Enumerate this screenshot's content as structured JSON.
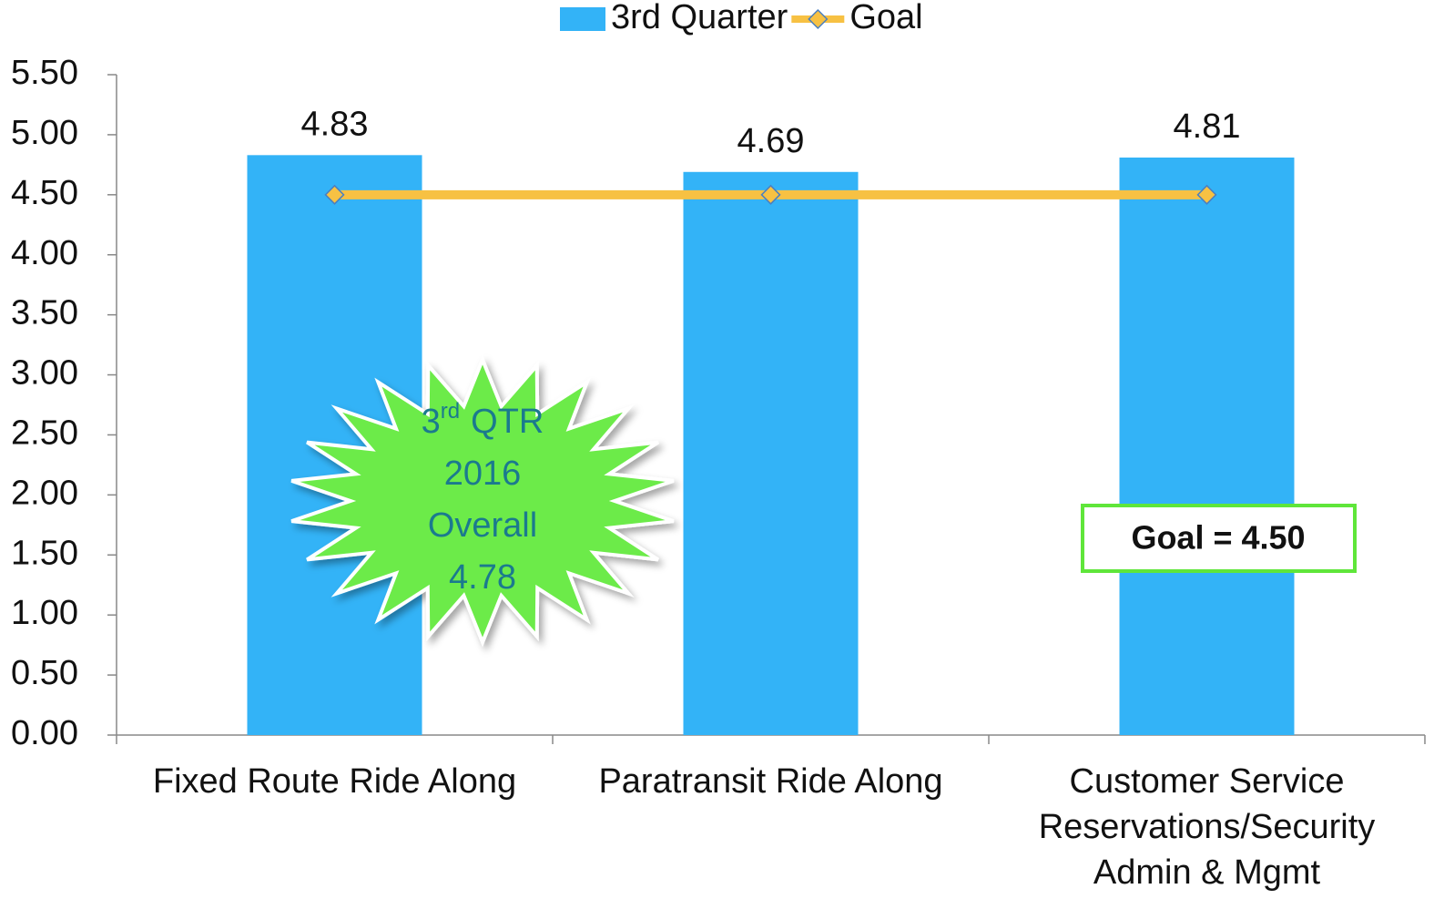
{
  "chart_data": {
    "type": "bar",
    "categories": [
      "Fixed Route Ride Along",
      "Paratransit Ride Along",
      "Customer Service\nReservations/Security\nAdmin & Mgmt"
    ],
    "series": [
      {
        "name": "3rd Quarter",
        "type": "bar",
        "color": "#33b3f7",
        "values": [
          4.83,
          4.69,
          4.81
        ]
      },
      {
        "name": "Goal",
        "type": "line",
        "color": "#f7c143",
        "marker": "diamond",
        "values": [
          4.5,
          4.5,
          4.5
        ]
      }
    ],
    "ylim": [
      0,
      5.5
    ],
    "yticks": [
      {
        "value": 0,
        "label": "0.00"
      },
      {
        "value": 0.5,
        "label": "0.50"
      },
      {
        "value": 1,
        "label": "1.00"
      },
      {
        "value": 1.5,
        "label": "1.50"
      },
      {
        "value": 2,
        "label": "2.00"
      },
      {
        "value": 2.5,
        "label": "2.50"
      },
      {
        "value": 3,
        "label": "3.00"
      },
      {
        "value": 3.5,
        "label": "3.50"
      },
      {
        "value": 4,
        "label": "4.00"
      },
      {
        "value": 4.5,
        "label": "4.50"
      },
      {
        "value": 5,
        "label": "5.00"
      },
      {
        "value": 5.5,
        "label": "5.50"
      }
    ],
    "grid": false,
    "legend": "top",
    "starburst": {
      "first_line": [
        "3",
        "rd",
        "QTR"
      ],
      "lines": [
        "2016",
        "Overall",
        "4.78"
      ]
    },
    "goal_box": "Goal = 4.50"
  }
}
